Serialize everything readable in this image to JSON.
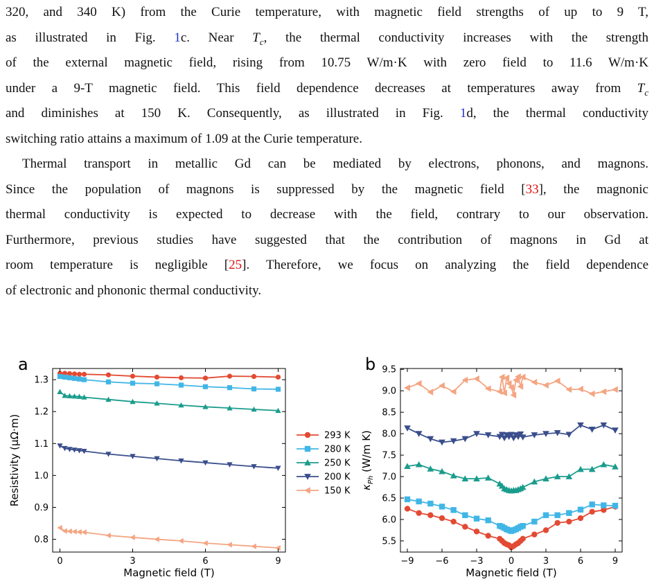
{
  "paragraph1_lines": [
    "320, and 340 K) from the Curie temperature, with magnetic field strengths of up to 9 T,",
    "as illustrated in Fig. |1|c.  Near |Tc|, the thermal conductivity increases with the strength",
    "of the external magnetic field, rising from 10.75 W/m·K with zero field to 11.6 W/m·K",
    "under a 9-T magnetic field. This field dependence decreases at temperatures away from |Tc|",
    "and diminishes at 150 K. Consequently, as illustrated in Fig. |1|d, the thermal conductivity",
    "switching ratio attains a maximum of 1.09 at the Curie temperature."
  ],
  "paragraph2_lines": [
    "Thermal transport in metallic Gd can be mediated by electrons, phonons, and magnons.",
    "Since the population of magnons is suppressed by the magnetic field [|33|], the magnonic",
    "thermal conductivity is expected to decrease with the field, contrary to our observation.",
    "Furthermore, previous studies have suggested that the contribution of magnons in Gd at",
    "room temperature is negligible [|25|]. Therefore, we focus on analyzing the field dependence",
    "of electronic and phononic thermal conductivity."
  ],
  "chart_data": [
    {
      "panel_label": "a",
      "type": "line",
      "xlabel": "Magnetic field (T)",
      "ylabel": "Resistivity (µΩ·m)",
      "xlim": [
        -0.3,
        9.3
      ],
      "ylim": [
        0.76,
        1.335
      ],
      "xticks": [
        0,
        3,
        6,
        9
      ],
      "yticks": [
        0.8,
        0.9,
        1.0,
        1.1,
        1.2,
        1.3
      ],
      "ytick_labels": [
        "0.8",
        "0.9",
        "1.0",
        "1.1",
        "1.2",
        "1.3"
      ],
      "legend_position": "right-outside",
      "series": [
        {
          "name": "293 K",
          "color": "#e34a33",
          "marker": "circle",
          "x": [
            0,
            0.2,
            0.4,
            0.6,
            0.8,
            1,
            2,
            3,
            4,
            5,
            6,
            7,
            8,
            9
          ],
          "y": [
            1.32,
            1.32,
            1.319,
            1.318,
            1.317,
            1.317,
            1.315,
            1.311,
            1.308,
            1.306,
            1.305,
            1.311,
            1.31,
            1.308
          ]
        },
        {
          "name": "280 K",
          "color": "#41b6e6",
          "marker": "square",
          "x": [
            0,
            0.2,
            0.4,
            0.6,
            0.8,
            1,
            2,
            3,
            4,
            5,
            6,
            7,
            8,
            9
          ],
          "y": [
            1.31,
            1.308,
            1.306,
            1.304,
            1.302,
            1.3,
            1.293,
            1.289,
            1.287,
            1.283,
            1.278,
            1.275,
            1.271,
            1.27
          ]
        },
        {
          "name": "250 K",
          "color": "#1a9c8c",
          "marker": "triangle-up",
          "x": [
            0,
            0.2,
            0.4,
            0.6,
            0.8,
            1,
            2,
            3,
            4,
            5,
            6,
            7,
            8,
            9
          ],
          "y": [
            1.262,
            1.25,
            1.249,
            1.248,
            1.247,
            1.245,
            1.238,
            1.231,
            1.226,
            1.22,
            1.215,
            1.211,
            1.207,
            1.203
          ]
        },
        {
          "name": "200 K",
          "color": "#3a4e8c",
          "marker": "triangle-down",
          "x": [
            0,
            0.2,
            0.4,
            0.6,
            0.8,
            1,
            2,
            3,
            4,
            5,
            6,
            7,
            8,
            9
          ],
          "y": [
            1.093,
            1.085,
            1.082,
            1.08,
            1.078,
            1.076,
            1.067,
            1.06,
            1.053,
            1.046,
            1.04,
            1.034,
            1.028,
            1.023
          ]
        },
        {
          "name": "150 K",
          "color": "#f4a582",
          "marker": "triangle-left",
          "x": [
            0,
            0.2,
            0.4,
            0.6,
            0.8,
            1,
            2,
            3,
            4,
            5,
            6,
            7,
            8,
            9
          ],
          "y": [
            0.836,
            0.826,
            0.825,
            0.824,
            0.823,
            0.822,
            0.812,
            0.806,
            0.8,
            0.795,
            0.788,
            0.783,
            0.778,
            0.773
          ]
        }
      ]
    },
    {
      "panel_label": "b",
      "type": "line",
      "xlabel": "Magnetic field (T)",
      "ylabel": "κPh (W/m K)",
      "xlim": [
        -9.6,
        9.6
      ],
      "ylim": [
        5.24,
        9.52
      ],
      "xticks": [
        -9,
        -6,
        -3,
        0,
        3,
        6,
        9
      ],
      "xtick_labels": [
        "−9",
        "−6",
        "−3",
        "0",
        "3",
        "6",
        "9"
      ],
      "yticks": [
        5.5,
        6.0,
        6.5,
        7.0,
        7.5,
        8.0,
        8.5,
        9.0,
        9.5
      ],
      "ytick_labels": [
        "5.5",
        "6.0",
        "6.5",
        "7.0",
        "7.5",
        "8.0",
        "8.5",
        "9.0",
        "9.5"
      ],
      "series": [
        {
          "name": "293 K",
          "color": "#e34a33",
          "marker": "circle",
          "x": [
            -9,
            -8,
            -7,
            -6,
            -5,
            -4,
            -3,
            -2,
            -1,
            -0.8,
            -0.6,
            -0.4,
            -0.2,
            0,
            0.2,
            0.4,
            0.6,
            0.8,
            1,
            2,
            3,
            4,
            5,
            6,
            7,
            8,
            9
          ],
          "y": [
            6.25,
            6.15,
            6.1,
            6.03,
            5.95,
            5.83,
            5.72,
            5.62,
            5.55,
            5.5,
            5.45,
            5.42,
            5.4,
            5.35,
            5.38,
            5.42,
            5.45,
            5.5,
            5.55,
            5.65,
            5.75,
            5.92,
            5.95,
            6.03,
            6.18,
            6.22,
            6.3
          ]
        },
        {
          "name": "280 K",
          "color": "#41b6e6",
          "marker": "square",
          "x": [
            -9,
            -8,
            -7,
            -6,
            -5,
            -4,
            -3,
            -2,
            -1,
            -0.8,
            -0.6,
            -0.4,
            -0.2,
            0,
            0.2,
            0.4,
            0.6,
            0.8,
            1,
            2,
            3,
            4,
            5,
            6,
            7,
            8,
            9
          ],
          "y": [
            6.47,
            6.42,
            6.37,
            6.3,
            6.22,
            6.1,
            6.02,
            5.98,
            5.85,
            5.83,
            5.8,
            5.77,
            5.75,
            5.73,
            5.75,
            5.77,
            5.8,
            5.83,
            5.85,
            5.95,
            6.1,
            6.1,
            6.15,
            6.23,
            6.35,
            6.33,
            6.32
          ]
        },
        {
          "name": "250 K",
          "color": "#1a9c8c",
          "marker": "triangle-up",
          "x": [
            -9,
            -8,
            -7,
            -6,
            -5,
            -4,
            -3,
            -2,
            -1,
            -0.8,
            -0.6,
            -0.4,
            -0.2,
            0,
            0.2,
            0.4,
            0.6,
            0.8,
            1,
            2,
            3,
            4,
            5,
            6,
            7,
            8,
            9
          ],
          "y": [
            7.24,
            7.28,
            7.18,
            7.12,
            7.02,
            6.95,
            6.95,
            6.97,
            6.83,
            6.78,
            6.72,
            6.7,
            6.68,
            6.67,
            6.68,
            6.68,
            6.7,
            6.72,
            6.75,
            6.88,
            6.95,
            7.0,
            7.0,
            7.17,
            7.17,
            7.28,
            7.23
          ]
        },
        {
          "name": "200 K",
          "color": "#3a4e8c",
          "marker": "triangle-down",
          "x": [
            -9,
            -8,
            -7,
            -6,
            -5,
            -4,
            -3,
            -2,
            -1,
            -0.8,
            -0.6,
            -0.4,
            -0.2,
            0,
            0.2,
            0.4,
            0.6,
            0.8,
            1,
            2,
            3,
            4,
            5,
            6,
            7,
            8,
            9
          ],
          "y": [
            8.13,
            8.0,
            7.88,
            7.8,
            7.83,
            7.88,
            8.0,
            7.97,
            7.93,
            7.98,
            7.9,
            7.97,
            7.93,
            7.98,
            7.9,
            7.97,
            7.93,
            7.99,
            7.92,
            7.97,
            8.0,
            8.02,
            7.98,
            8.2,
            8.1,
            8.2,
            8.08
          ]
        },
        {
          "name": "150 K",
          "color": "#f4a582",
          "marker": "triangle-left",
          "x": [
            -9,
            -8,
            -7,
            -6,
            -5,
            -4,
            -3,
            -2,
            -1,
            -0.8,
            -0.6,
            -0.4,
            -0.2,
            0,
            0.2,
            0.4,
            0.6,
            0.8,
            1,
            2,
            3,
            4,
            5,
            6,
            7,
            8,
            9
          ],
          "y": [
            9.07,
            9.17,
            8.97,
            9.12,
            8.98,
            9.25,
            9.28,
            9.05,
            8.98,
            9.32,
            8.95,
            9.3,
            9.17,
            9.08,
            8.9,
            9.25,
            9.33,
            9.1,
            9.32,
            9.2,
            9.13,
            9.23,
            9.03,
            9.04,
            8.93,
            8.98,
            9.03
          ]
        }
      ]
    }
  ],
  "legend": {
    "entries": [
      "293 K",
      "280 K",
      "250 K",
      "200 K",
      "150 K"
    ]
  }
}
